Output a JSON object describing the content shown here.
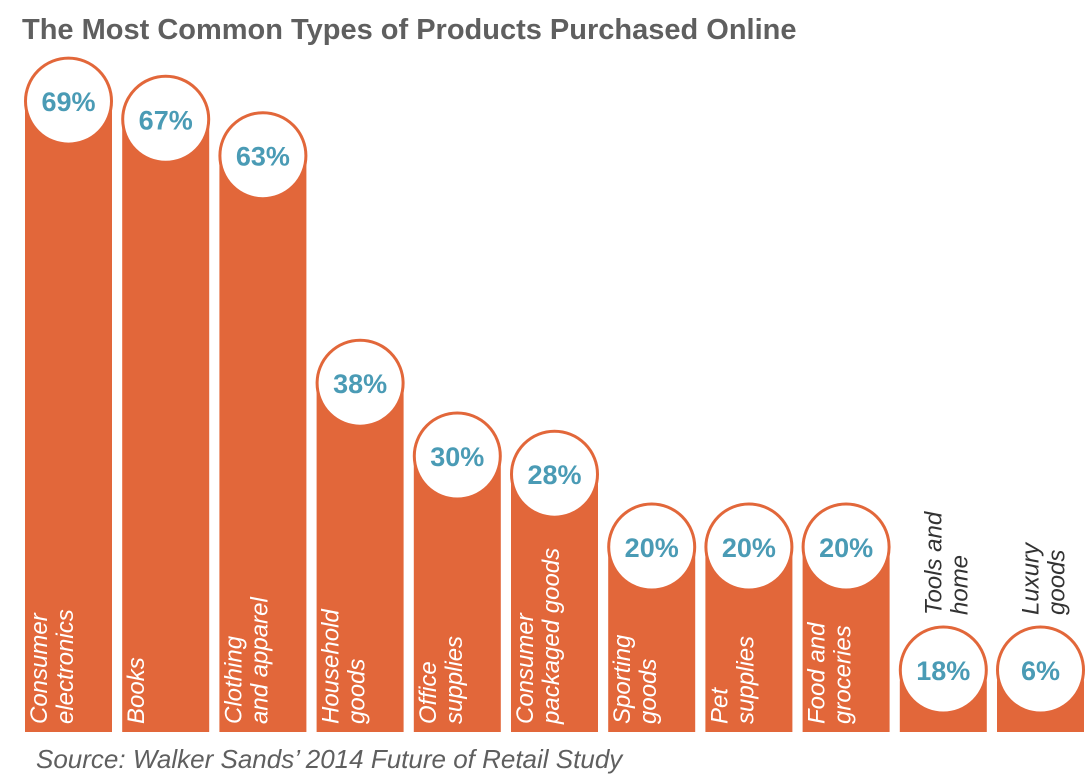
{
  "chart_data": {
    "type": "bar",
    "title": "The Most Common Types of Products Purchased Online",
    "categories": [
      [
        "Consumer",
        "electronics"
      ],
      [
        "Books"
      ],
      [
        "Clothing",
        "and apparel"
      ],
      [
        "Household",
        "goods"
      ],
      [
        "Office",
        "supplies"
      ],
      [
        "Consumer",
        "packaged goods"
      ],
      [
        "Sporting",
        "goods"
      ],
      [
        "Pet",
        "supplies"
      ],
      [
        "Food and",
        "groceries"
      ],
      [
        "Tools and",
        "home"
      ],
      [
        "Luxury",
        "goods"
      ]
    ],
    "values": [
      69,
      67,
      63,
      38,
      30,
      28,
      20,
      20,
      20,
      18,
      6
    ],
    "value_labels": [
      "69%",
      "67%",
      "63%",
      "38%",
      "30%",
      "28%",
      "20%",
      "20%",
      "20%",
      "18%",
      "6%"
    ],
    "ylim": [
      0,
      70
    ],
    "grid": false,
    "legend": "none",
    "colors": {
      "bar": "#e2673a",
      "circle_border": "#e2673a",
      "circle_fill": "#ffffff",
      "value_text": "#4a9bb5",
      "label_light": "#ffffff",
      "label_dark": "#333333",
      "title": "#5f5f5f"
    }
  },
  "source": "Source: Walker Sands’ 2014 Future of Retail Study"
}
